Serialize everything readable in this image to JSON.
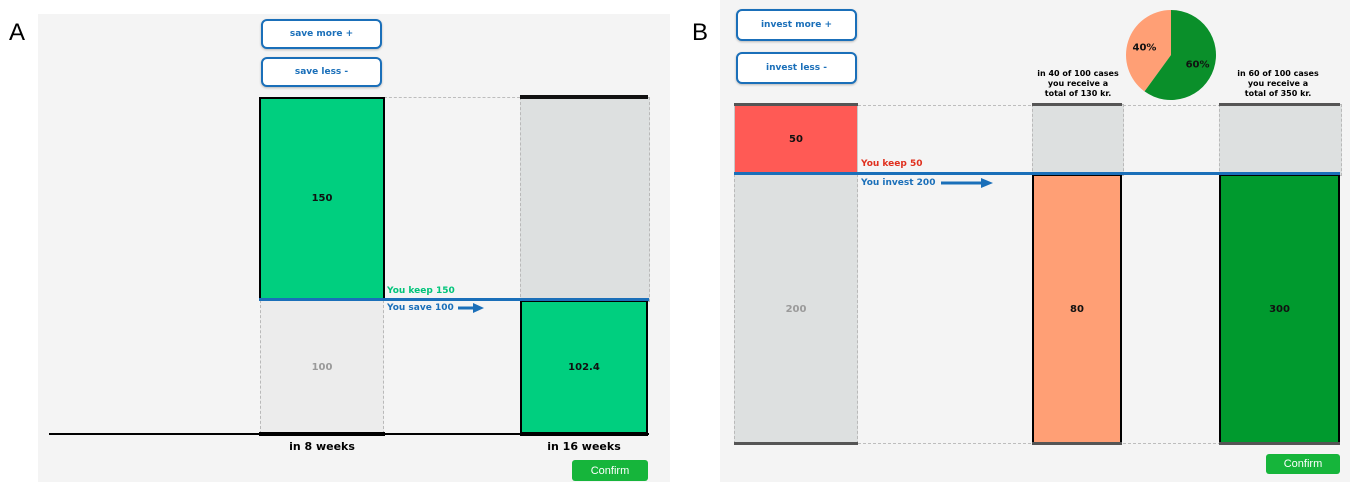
{
  "panel_a": {
    "letter": "A",
    "buttons": {
      "more": "save more +",
      "less": "save less -"
    },
    "bar_now": {
      "top_value": "150",
      "bottom_value": "100"
    },
    "bar_later": {
      "bottom_value": "102.4"
    },
    "keep_label": "You keep 150",
    "action_label": "You save 100",
    "x_labels": [
      "in 8 weeks",
      "in 16 weeks"
    ],
    "confirm": "Confirm"
  },
  "panel_b": {
    "letter": "B",
    "buttons": {
      "more": "invest more +",
      "less": "invest less -"
    },
    "bar_now": {
      "top_value": "50",
      "bottom_value": "200"
    },
    "keep_label": "You keep 50",
    "action_label": "You invest 200",
    "outcomes": [
      {
        "label_lines": [
          "in 40 of 100 cases",
          "you receive a",
          "total of 130 kr."
        ],
        "value": "80"
      },
      {
        "label_lines": [
          "in 60 of 100 cases",
          "you receive a",
          "total of 350 kr."
        ],
        "value": "300"
      }
    ],
    "pie": {
      "slices": [
        {
          "label": "40%",
          "value": 40,
          "color": "#ff9f75"
        },
        {
          "label": "60%",
          "value": 60,
          "color": "#0a8f2a"
        }
      ]
    },
    "confirm": "Confirm"
  },
  "colors": {
    "green_bar": "#00cf7f",
    "grey_bar": "#dde0e0",
    "light_grey_bar": "#ececec",
    "red_bar": "#ff5a55",
    "salmon_bar": "#ff9f75",
    "dark_green_bar": "#009a2e",
    "blue_line": "#1a6fb9",
    "keep_green": "#00c47a",
    "keep_red": "#e0301e",
    "confirm_green": "#16b53b"
  }
}
